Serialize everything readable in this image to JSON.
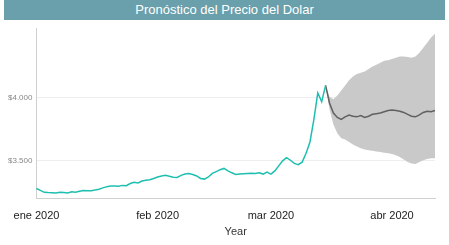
{
  "chart_data": {
    "type": "line",
    "title": "Pronóstico del Precio del Dolar",
    "x_label": "Year",
    "categories": [
      "ene 2020",
      null,
      null,
      null,
      null,
      null,
      null,
      null,
      null,
      null,
      null,
      null,
      null,
      null,
      null,
      null,
      null,
      null,
      null,
      null,
      null,
      null,
      null,
      null,
      null,
      null,
      null,
      null,
      null,
      null,
      null,
      "feb 2020",
      null,
      null,
      null,
      null,
      null,
      null,
      null,
      null,
      null,
      null,
      null,
      null,
      null,
      null,
      null,
      null,
      null,
      null,
      null,
      null,
      null,
      null,
      null,
      null,
      null,
      null,
      null,
      null,
      "mar 2020",
      null,
      null,
      null,
      null,
      null,
      null,
      null,
      null,
      null,
      null,
      null,
      null,
      null,
      null,
      null,
      null,
      null,
      null,
      null,
      null,
      null,
      null,
      null,
      null,
      null,
      null,
      null,
      null,
      null,
      null,
      "abr 2020",
      null,
      null,
      null,
      null,
      null,
      null,
      null,
      null,
      null,
      null,
      null
    ],
    "series": [
      {
        "color": "#1fbfb0",
        "values": [
          3280,
          3265,
          3250,
          3248,
          3247,
          3245,
          3250,
          3248,
          3245,
          3255,
          3250,
          3258,
          3265,
          3262,
          3262,
          3268,
          3275,
          3285,
          3295,
          3300,
          3300,
          3298,
          3305,
          3302,
          3320,
          3330,
          3325,
          3340,
          3345,
          3350,
          3360,
          3372,
          3380,
          3385,
          3378,
          3370,
          3368,
          3385,
          3395,
          3400,
          3392,
          3380,
          3360,
          3355,
          3372,
          3400,
          3415,
          3430,
          3440,
          3420,
          3405,
          3392,
          3395,
          3398,
          3400,
          3402,
          3400,
          3405,
          3395,
          3410,
          3395,
          3420,
          3460,
          3500,
          3525,
          3505,
          3480,
          3470,
          3490,
          3560,
          3650,
          3830,
          4040,
          3970,
          4100,
          null,
          null,
          null,
          null,
          null,
          null,
          null,
          null,
          null,
          null,
          null,
          null,
          null,
          null,
          null,
          null,
          null,
          null,
          null,
          null,
          null,
          null,
          null,
          null,
          null,
          null,
          null,
          null
        ]
      },
      {
        "color": "#606060",
        "values": [
          null,
          null,
          null,
          null,
          null,
          null,
          null,
          null,
          null,
          null,
          null,
          null,
          null,
          null,
          null,
          null,
          null,
          null,
          null,
          null,
          null,
          null,
          null,
          null,
          null,
          null,
          null,
          null,
          null,
          null,
          null,
          null,
          null,
          null,
          null,
          null,
          null,
          null,
          null,
          null,
          null,
          null,
          null,
          null,
          null,
          null,
          null,
          null,
          null,
          null,
          null,
          null,
          null,
          null,
          null,
          null,
          null,
          null,
          null,
          null,
          null,
          null,
          null,
          null,
          null,
          null,
          null,
          null,
          null,
          null,
          null,
          null,
          null,
          null,
          4100,
          3960,
          3880,
          3845,
          3830,
          3850,
          3865,
          3855,
          3850,
          3860,
          3845,
          3855,
          3870,
          3875,
          3880,
          3890,
          3900,
          3905,
          3900,
          3895,
          3885,
          3870,
          3855,
          3850,
          3865,
          3885,
          3895,
          3890,
          3900
        ],
        "lower": [
          null,
          null,
          null,
          null,
          null,
          null,
          null,
          null,
          null,
          null,
          null,
          null,
          null,
          null,
          null,
          null,
          null,
          null,
          null,
          null,
          null,
          null,
          null,
          null,
          null,
          null,
          null,
          null,
          null,
          null,
          null,
          null,
          null,
          null,
          null,
          null,
          null,
          null,
          null,
          null,
          null,
          null,
          null,
          null,
          null,
          null,
          null,
          null,
          null,
          null,
          null,
          null,
          null,
          null,
          null,
          null,
          null,
          null,
          null,
          null,
          null,
          null,
          null,
          null,
          null,
          null,
          null,
          null,
          null,
          null,
          null,
          null,
          null,
          null,
          4100,
          3910,
          3790,
          3720,
          3680,
          3670,
          3650,
          3630,
          3615,
          3600,
          3590,
          3585,
          3580,
          3575,
          3570,
          3565,
          3560,
          3555,
          3545,
          3530,
          3510,
          3490,
          3480,
          3475,
          3490,
          3505,
          3515,
          3520,
          3520
        ],
        "upper": [
          null,
          null,
          null,
          null,
          null,
          null,
          null,
          null,
          null,
          null,
          null,
          null,
          null,
          null,
          null,
          null,
          null,
          null,
          null,
          null,
          null,
          null,
          null,
          null,
          null,
          null,
          null,
          null,
          null,
          null,
          null,
          null,
          null,
          null,
          null,
          null,
          null,
          null,
          null,
          null,
          null,
          null,
          null,
          null,
          null,
          null,
          null,
          null,
          null,
          null,
          null,
          null,
          null,
          null,
          null,
          null,
          null,
          null,
          null,
          null,
          null,
          null,
          null,
          null,
          null,
          null,
          null,
          null,
          null,
          null,
          null,
          null,
          null,
          null,
          4100,
          4010,
          3990,
          4020,
          4060,
          4100,
          4140,
          4170,
          4190,
          4200,
          4210,
          4230,
          4250,
          4265,
          4280,
          4295,
          4300,
          4310,
          4320,
          4330,
          4330,
          4325,
          4320,
          4330,
          4360,
          4400,
          4440,
          4480,
          4510
        ]
      }
    ],
    "ylim": [
      3200,
      4550
    ],
    "yticks": [
      {
        "value": 3500,
        "label": "$3.500"
      },
      {
        "value": 4000,
        "label": "$4.000"
      }
    ],
    "grid": true
  }
}
